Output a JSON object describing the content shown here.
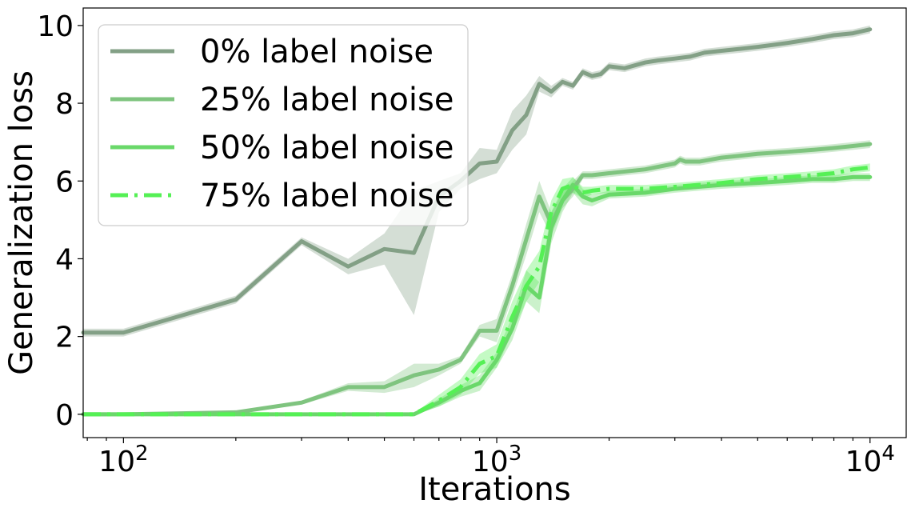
{
  "chart_data": {
    "type": "line",
    "xlabel": "Iterations",
    "ylabel": "Generalization loss",
    "xscale": "log",
    "xlim": [
      78,
      12500
    ],
    "ylim": [
      -0.6,
      10.45
    ],
    "x_ticks": [
      {
        "value": 100,
        "base": "10",
        "exp": "2"
      },
      {
        "value": 1000,
        "base": "10",
        "exp": "3"
      },
      {
        "value": 10000,
        "base": "10",
        "exp": "4"
      }
    ],
    "y_ticks": [
      0,
      2,
      4,
      6,
      8,
      10
    ],
    "legend_position": "upper-left",
    "series": [
      {
        "name": "0% label noise",
        "color": "#83a086",
        "dash": "solid",
        "x": [
          78,
          100,
          200,
          300,
          400,
          500,
          600,
          700,
          800,
          900,
          1000,
          1100,
          1200,
          1300,
          1400,
          1500,
          1600,
          1700,
          1800,
          1900,
          2000,
          2200,
          2500,
          2700,
          3000,
          3300,
          3600,
          4000,
          4500,
          5000,
          5500,
          6000,
          7000,
          8000,
          9000,
          10000
        ],
        "y": [
          2.1,
          2.1,
          2.95,
          4.45,
          3.8,
          4.25,
          4.15,
          5.6,
          6.0,
          6.45,
          6.5,
          7.3,
          7.7,
          8.5,
          8.3,
          8.55,
          8.45,
          8.8,
          8.7,
          8.75,
          8.95,
          8.9,
          9.05,
          9.1,
          9.15,
          9.2,
          9.3,
          9.35,
          9.4,
          9.45,
          9.5,
          9.55,
          9.65,
          9.75,
          9.8,
          9.9
        ],
        "band": [
          0.1,
          0.1,
          0.1,
          0.1,
          0.2,
          0.4,
          1.6,
          0.4,
          0.2,
          0.4,
          0.3,
          0.5,
          0.5,
          0.2,
          0.15,
          0.1,
          0.1,
          0.1,
          0.1,
          0.1,
          0.1,
          0.1,
          0.1,
          0.1,
          0.1,
          0.1,
          0.1,
          0.1,
          0.1,
          0.1,
          0.1,
          0.1,
          0.1,
          0.1,
          0.1,
          0.1
        ]
      },
      {
        "name": "25% label noise",
        "color": "#7fc47f",
        "dash": "solid",
        "x": [
          78,
          100,
          200,
          300,
          400,
          500,
          600,
          700,
          800,
          900,
          1000,
          1100,
          1200,
          1300,
          1400,
          1500,
          1600,
          1700,
          1800,
          2000,
          2500,
          3000,
          3100,
          3200,
          3500,
          4000,
          4500,
          5000,
          6000,
          7000,
          8000,
          9000,
          10000
        ],
        "y": [
          0.0,
          0.0,
          0.05,
          0.3,
          0.7,
          0.7,
          1.0,
          1.15,
          1.4,
          2.15,
          2.15,
          3.3,
          4.5,
          5.6,
          4.9,
          5.5,
          5.8,
          6.15,
          6.15,
          6.2,
          6.3,
          6.45,
          6.55,
          6.5,
          6.5,
          6.6,
          6.65,
          6.7,
          6.75,
          6.8,
          6.85,
          6.9,
          6.95
        ],
        "band": [
          0.02,
          0.02,
          0.02,
          0.05,
          0.1,
          0.15,
          0.3,
          0.15,
          0.1,
          0.15,
          0.3,
          0.3,
          0.4,
          0.4,
          0.3,
          0.2,
          0.2,
          0.1,
          0.1,
          0.1,
          0.1,
          0.1,
          0.1,
          0.1,
          0.1,
          0.1,
          0.1,
          0.1,
          0.1,
          0.1,
          0.1,
          0.1,
          0.1
        ]
      },
      {
        "name": "50% label noise",
        "color": "#6ad86a",
        "dash": "solid",
        "x": [
          78,
          100,
          200,
          300,
          400,
          500,
          600,
          700,
          800,
          900,
          1000,
          1100,
          1200,
          1300,
          1400,
          1500,
          1600,
          1700,
          1800,
          2000,
          2500,
          3000,
          4000,
          5000,
          6000,
          7000,
          8000,
          9000,
          10000
        ],
        "y": [
          0.0,
          0.0,
          0.0,
          0.0,
          0.0,
          0.0,
          0.0,
          0.3,
          0.6,
          0.8,
          1.4,
          2.2,
          3.3,
          3.0,
          4.8,
          5.5,
          5.9,
          5.6,
          5.5,
          5.65,
          5.7,
          5.8,
          5.9,
          5.95,
          6.0,
          6.05,
          6.05,
          6.1,
          6.1
        ],
        "band": [
          0.02,
          0.02,
          0.02,
          0.02,
          0.02,
          0.02,
          0.02,
          0.1,
          0.15,
          0.2,
          0.2,
          0.3,
          0.4,
          0.4,
          0.4,
          0.3,
          0.2,
          0.2,
          0.15,
          0.1,
          0.1,
          0.1,
          0.1,
          0.1,
          0.1,
          0.1,
          0.1,
          0.1,
          0.1
        ]
      },
      {
        "name": "75% label noise",
        "color": "#55f055",
        "dash": "dashdot",
        "x": [
          78,
          100,
          200,
          300,
          400,
          500,
          600,
          700,
          800,
          900,
          1000,
          1100,
          1200,
          1300,
          1400,
          1500,
          1600,
          1700,
          1800,
          2000,
          2500,
          3000,
          4000,
          5000,
          6000,
          7000,
          8000,
          9000,
          10000
        ],
        "y": [
          0.0,
          0.0,
          0.0,
          0.0,
          0.0,
          0.0,
          0.0,
          0.35,
          0.7,
          1.3,
          1.5,
          2.5,
          3.3,
          3.8,
          5.2,
          5.8,
          5.9,
          5.7,
          5.75,
          5.8,
          5.8,
          5.85,
          5.95,
          6.05,
          6.1,
          6.15,
          6.2,
          6.3,
          6.35
        ],
        "band": [
          0.02,
          0.02,
          0.02,
          0.02,
          0.02,
          0.02,
          0.02,
          0.15,
          0.2,
          0.25,
          0.3,
          0.4,
          0.4,
          0.4,
          0.3,
          0.25,
          0.2,
          0.15,
          0.1,
          0.1,
          0.1,
          0.1,
          0.1,
          0.1,
          0.1,
          0.1,
          0.1,
          0.1,
          0.1
        ]
      }
    ]
  }
}
